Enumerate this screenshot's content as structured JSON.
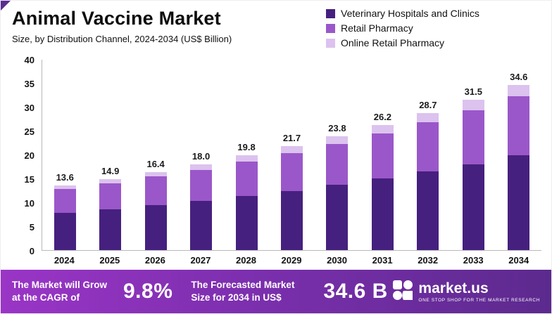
{
  "header": {
    "title": "Animal Vaccine Market",
    "subtitle": "Size, by Distribution Channel, 2024-2034 (US$ Billion)"
  },
  "chart_data": {
    "type": "bar",
    "stacked": true,
    "title": "Animal Vaccine Market",
    "xlabel": "",
    "ylabel": "US$ Billion",
    "ylim": [
      0,
      40
    ],
    "yticks": [
      0,
      5,
      10,
      15,
      20,
      25,
      30,
      35,
      40
    ],
    "grid": false,
    "legend_position": "top-right",
    "categories": [
      "2024",
      "2025",
      "2026",
      "2027",
      "2028",
      "2029",
      "2030",
      "2031",
      "2032",
      "2033",
      "2034"
    ],
    "series": [
      {
        "name": "Veterinary Hospitals and Clinics",
        "color": "#46207e",
        "values": [
          7.8,
          8.5,
          9.4,
          10.3,
          11.3,
          12.4,
          13.7,
          15.0,
          16.4,
          18.0,
          19.8
        ]
      },
      {
        "name": "Retail Pharmacy",
        "color": "#9a57c9",
        "values": [
          5.0,
          5.5,
          6.0,
          6.5,
          7.2,
          7.9,
          8.5,
          9.4,
          10.3,
          11.3,
          12.4
        ]
      },
      {
        "name": "Online Retail Pharmacy",
        "color": "#dcc2ee",
        "values": [
          0.8,
          0.9,
          1.0,
          1.2,
          1.3,
          1.4,
          1.6,
          1.8,
          2.0,
          2.2,
          2.4
        ]
      }
    ],
    "totals": [
      13.6,
      14.9,
      16.4,
      18.0,
      19.8,
      21.7,
      23.8,
      26.2,
      28.7,
      31.5,
      34.6
    ],
    "totals_display": [
      "13.6",
      "14.9",
      "16.4",
      "18.0",
      "19.8",
      "21.7",
      "23.8",
      "26.2",
      "28.7",
      "31.5",
      "34.6"
    ]
  },
  "footer": {
    "cagr_label": "The Market will Grow\nat the CAGR of",
    "cagr_value": "9.8%",
    "forecast_label": "The Forecasted Market\nSize for 2034 in US$",
    "forecast_value": "34.6 B",
    "brand": "market.us",
    "tagline": "ONE STOP SHOP FOR THE MARKET RESEARCH"
  },
  "colors": {
    "accent_dark": "#46207e",
    "accent_mid": "#9a57c9",
    "accent_light": "#dcc2ee",
    "banner_left": "#9a35c6",
    "banner_right": "#5c2a8e"
  }
}
